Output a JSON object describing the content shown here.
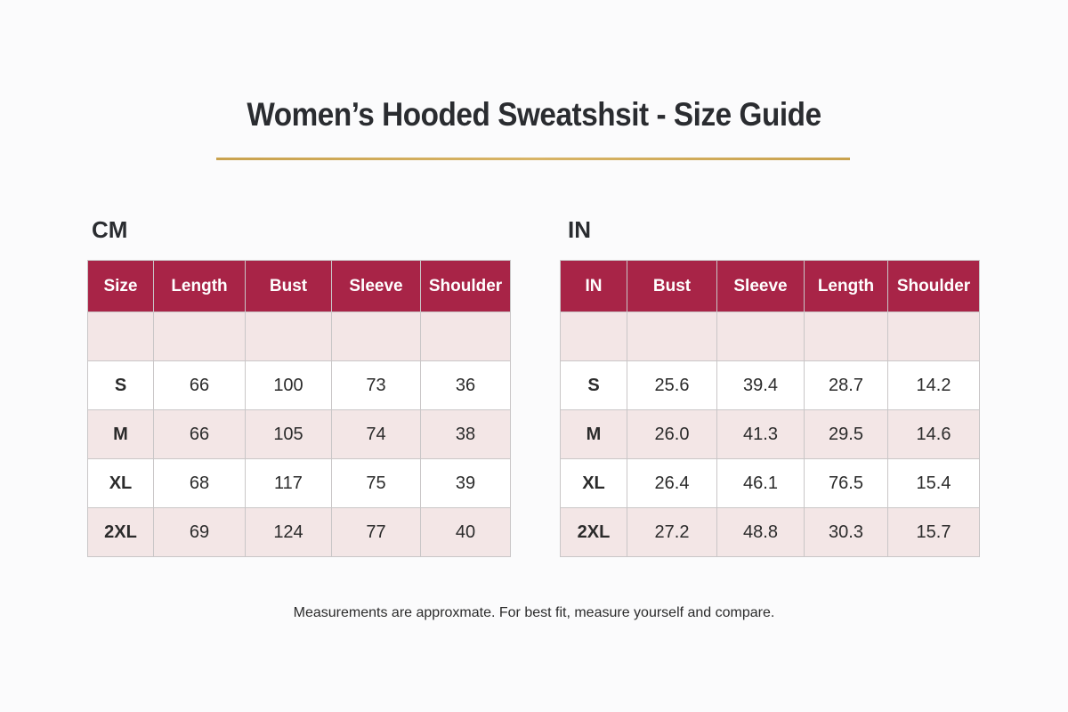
{
  "title": "Women’s Hooded Sweatshsit - Size Guide",
  "colors": {
    "header_bg": "#a82447",
    "header_text": "#ffffff",
    "row_shaded": "#f3e6e6",
    "row_plain": "#ffffff",
    "rule_gold": "#c9a24e"
  },
  "cm": {
    "label": "CM",
    "headers": [
      "Size",
      "Length",
      "Bust",
      "Sleeve",
      "Shoulder"
    ],
    "rows": [
      [
        "",
        "",
        "",
        "",
        ""
      ],
      [
        "S",
        "66",
        "100",
        "73",
        "36"
      ],
      [
        "M",
        "66",
        "105",
        "74",
        "38"
      ],
      [
        "XL",
        "68",
        "117",
        "75",
        "39"
      ],
      [
        "2XL",
        "69",
        "124",
        "77",
        "40"
      ]
    ]
  },
  "in": {
    "label": "IN",
    "headers": [
      "IN",
      "Bust",
      "Sleeve",
      "Length",
      "Shoulder"
    ],
    "rows": [
      [
        "",
        "",
        "",
        "",
        ""
      ],
      [
        "S",
        "25.6",
        "39.4",
        "28.7",
        "14.2"
      ],
      [
        "M",
        "26.0",
        "41.3",
        "29.5",
        "14.6"
      ],
      [
        "XL",
        "26.4",
        "46.1",
        "76.5",
        "15.4"
      ],
      [
        "2XL",
        "27.2",
        "48.8",
        "30.3",
        "15.7"
      ]
    ]
  },
  "footnote": "Measurements are approxmate. For best fit, measure yourself and compare."
}
